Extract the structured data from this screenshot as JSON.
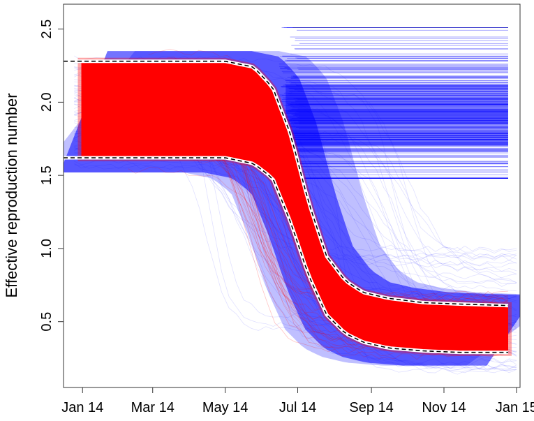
{
  "chart_data": {
    "type": "line",
    "title": "",
    "xlabel": "",
    "ylabel": "Effective reproduction number",
    "x_ticks": [
      "Jan 14",
      "Mar 14",
      "May 14",
      "Jul 14",
      "Sep 14",
      "Nov 14",
      "Jan 15"
    ],
    "y_ticks": [
      "0.5",
      "1.0",
      "1.5",
      "2.0",
      "2.5"
    ],
    "xlim": [
      "2013-12-16",
      "2015-01-04"
    ],
    "ylim": [
      0.05,
      2.67
    ],
    "grid": false,
    "legend": "none",
    "colors": {
      "red": "#ff0000",
      "blue": "#0000ff",
      "dashed": "#000000"
    },
    "series": [
      {
        "color": "red",
        "x": [
          "2013-12-31",
          "2014-03-01",
          "2014-05-01",
          "2014-05-25",
          "2014-06-10",
          "2014-06-25",
          "2014-07-10",
          "2014-07-25",
          "2014-08-10",
          "2014-08-25",
          "2014-09-15",
          "2014-10-15",
          "2014-11-15",
          "2014-12-25"
        ],
        "upper": [
          2.28,
          2.28,
          2.28,
          2.24,
          2.1,
          1.78,
          1.32,
          0.95,
          0.78,
          0.7,
          0.66,
          0.63,
          0.62,
          0.61
        ],
        "lower": [
          1.62,
          1.62,
          1.62,
          1.58,
          1.48,
          1.18,
          0.82,
          0.55,
          0.42,
          0.36,
          0.32,
          0.3,
          0.29,
          0.29
        ]
      },
      {
        "color": "blue",
        "x": [
          "2014-06-15",
          "2014-12-25"
        ],
        "band_upper": [
          2.51,
          2.51
        ],
        "band_lower": [
          1.48,
          1.48
        ],
        "central": [
          1.9,
          1.9
        ]
      }
    ]
  }
}
